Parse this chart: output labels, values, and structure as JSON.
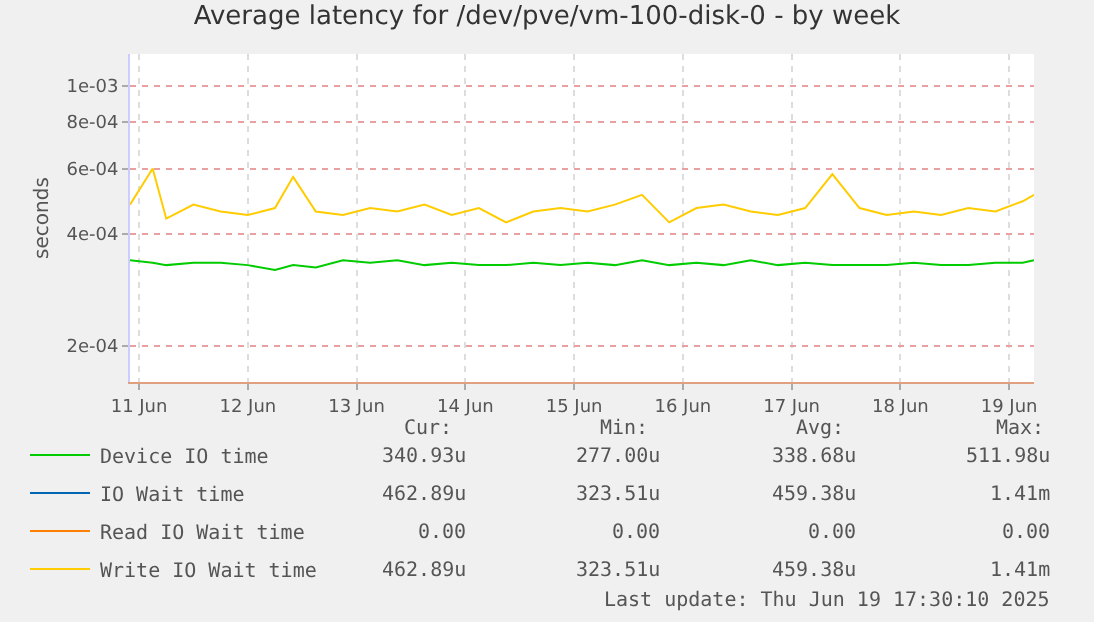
{
  "chart_data": {
    "type": "line",
    "title": "Average latency for /dev/pve/vm-100-disk-0 - by week",
    "ylabel": "seconds",
    "x": [
      "2025-06-11T10:00",
      "2025-06-11T15:00",
      "2025-06-11T18:00",
      "2025-06-12T00:00",
      "2025-06-12T06:00",
      "2025-06-12T12:00",
      "2025-06-12T18:00",
      "2025-06-12T22:00",
      "2025-06-13T03:00",
      "2025-06-13T09:00",
      "2025-06-13T15:00",
      "2025-06-13T21:00",
      "2025-06-14T03:00",
      "2025-06-14T09:00",
      "2025-06-14T15:00",
      "2025-06-14T21:00",
      "2025-06-15T03:00",
      "2025-06-15T09:00",
      "2025-06-15T15:00",
      "2025-06-15T21:00",
      "2025-06-16T03:00",
      "2025-06-16T09:00",
      "2025-06-16T15:00",
      "2025-06-16T21:00",
      "2025-06-17T03:00",
      "2025-06-17T09:00",
      "2025-06-17T15:00",
      "2025-06-17T21:00",
      "2025-06-18T03:00",
      "2025-06-18T09:00",
      "2025-06-18T15:00",
      "2025-06-18T21:00",
      "2025-06-19T03:00",
      "2025-06-19T09:00",
      "2025-06-19T15:00",
      "2025-06-19T17:30"
    ],
    "series": [
      {
        "name": "Device IO time",
        "color": "#00cc00",
        "values": [
          0.00034,
          0.000335,
          0.00033,
          0.000335,
          0.000335,
          0.00033,
          0.00032,
          0.00033,
          0.000325,
          0.00034,
          0.000335,
          0.00034,
          0.00033,
          0.000335,
          0.00033,
          0.00033,
          0.000335,
          0.00033,
          0.000335,
          0.00033,
          0.00034,
          0.00033,
          0.000335,
          0.00033,
          0.00034,
          0.00033,
          0.000335,
          0.00033,
          0.00033,
          0.00033,
          0.000335,
          0.00033,
          0.00033,
          0.000335,
          0.000335,
          0.00034
        ]
      },
      {
        "name": "IO Wait time",
        "color": "#0066b3",
        "values": [
          null,
          null,
          null,
          null,
          null,
          null,
          null,
          null,
          null,
          null,
          null,
          null,
          null,
          null,
          null,
          null,
          null,
          null,
          null,
          null,
          null,
          null,
          null,
          null,
          null,
          null,
          null,
          null,
          null,
          null,
          null,
          null,
          null,
          null,
          null,
          null
        ]
      },
      {
        "name": "Read IO Wait time",
        "color": "#ff8000",
        "values": [
          null,
          null,
          null,
          null,
          null,
          null,
          null,
          null,
          null,
          null,
          null,
          null,
          null,
          null,
          null,
          null,
          null,
          null,
          null,
          null,
          null,
          null,
          null,
          null,
          null,
          null,
          null,
          null,
          null,
          null,
          null,
          null,
          null,
          null,
          null,
          null
        ]
      },
      {
        "name": "Write IO Wait time",
        "color": "#ffcc00",
        "values": [
          0.00048,
          0.0006,
          0.00044,
          0.00048,
          0.00046,
          0.00045,
          0.00047,
          0.00057,
          0.00046,
          0.00045,
          0.00047,
          0.00046,
          0.00048,
          0.00045,
          0.00047,
          0.00043,
          0.00046,
          0.00047,
          0.00046,
          0.00048,
          0.00051,
          0.00043,
          0.00047,
          0.00048,
          0.00046,
          0.00045,
          0.00047,
          0.00058,
          0.00047,
          0.00045,
          0.00046,
          0.00045,
          0.00047,
          0.00046,
          0.00049,
          0.00051
        ]
      }
    ],
    "log": true,
    "ylim": [
      0.00016,
      0.00122
    ],
    "yticks": [
      {
        "value": 0.0002,
        "label": "2e-04"
      },
      {
        "value": 0.0004,
        "label": "4e-04"
      },
      {
        "value": 0.0006,
        "label": "6e-04"
      },
      {
        "value": 0.0008,
        "label": "8e-04"
      },
      {
        "value": 0.001,
        "label": "1e-03"
      }
    ],
    "xlim": [
      "2025-06-11T10:00",
      "2025-06-19T17:30"
    ],
    "xticks": [
      {
        "value": "2025-06-11T12:00",
        "label": "11 Jun"
      },
      {
        "value": "2025-06-12T12:00",
        "label": "12 Jun"
      },
      {
        "value": "2025-06-13T12:00",
        "label": "13 Jun"
      },
      {
        "value": "2025-06-14T12:00",
        "label": "14 Jun"
      },
      {
        "value": "2025-06-15T12:00",
        "label": "15 Jun"
      },
      {
        "value": "2025-06-16T12:00",
        "label": "16 Jun"
      },
      {
        "value": "2025-06-17T12:00",
        "label": "17 Jun"
      },
      {
        "value": "2025-06-18T12:00",
        "label": "18 Jun"
      },
      {
        "value": "2025-06-19T12:00",
        "label": "19 Jun"
      }
    ],
    "grid": true,
    "legend": "bottom",
    "marker": "none",
    "line_style": "solid",
    "annotations": [
      "Cur:",
      "Min:",
      "Avg:",
      "Max:",
      "340.93u",
      "277.00u",
      "338.68u",
      "511.98u",
      "462.89u",
      "323.51u",
      "459.38u",
      "1.41m",
      "0.00",
      "0.00",
      "0.00",
      "0.00",
      "462.89u",
      "323.51u",
      "459.38u",
      "1.41m",
      "Last update: Thu Jun 19 17:30:10 2025"
    ]
  }
}
